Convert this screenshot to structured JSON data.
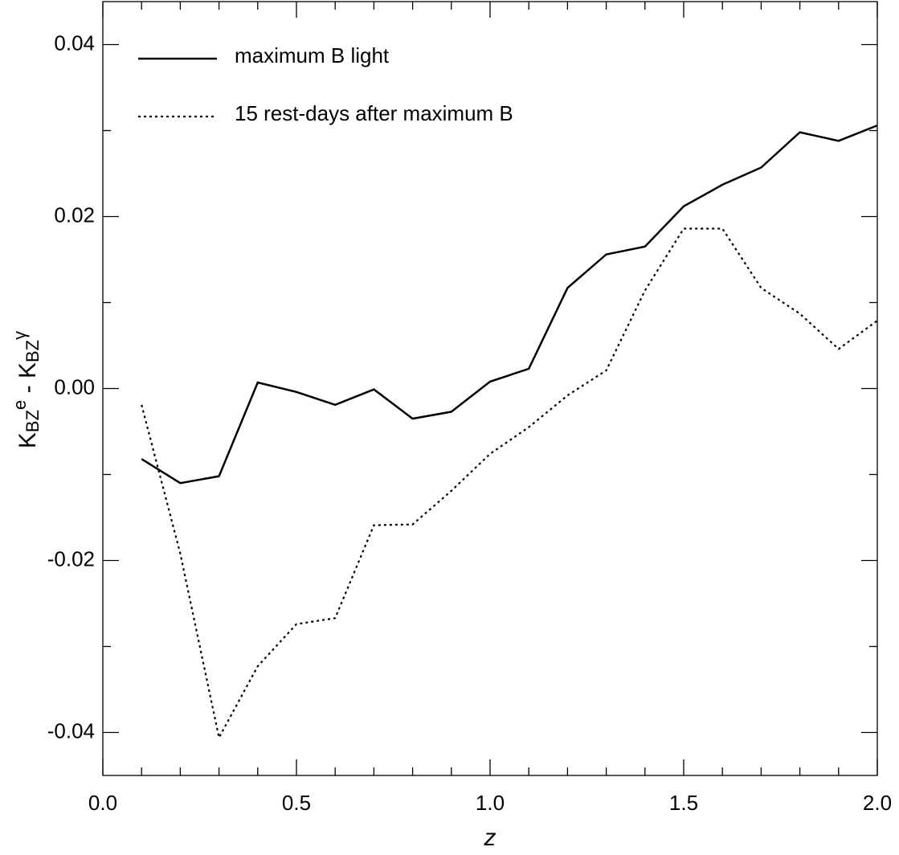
{
  "chart_data": {
    "type": "line",
    "x_label": "z",
    "y_label": [
      {
        "text": "K"
      },
      {
        "text": "BZ",
        "shift": "sub"
      },
      {
        "text": "e",
        "shift": "super"
      },
      {
        "text": " - K"
      },
      {
        "text": "BZ",
        "shift": "sub"
      },
      {
        "text": "γ",
        "shift": "super"
      }
    ],
    "x": [
      0.1,
      0.2,
      0.3,
      0.4,
      0.5,
      0.6,
      0.7,
      0.8,
      0.9,
      1.0,
      1.1,
      1.2,
      1.3,
      1.4,
      1.5,
      1.6,
      1.7,
      1.8,
      1.9,
      2.0
    ],
    "series": [
      {
        "name": "maximum B light",
        "color": "#000000",
        "dash": "solid",
        "values": [
          -0.0082,
          -0.011,
          -0.0102,
          0.0007,
          -0.0004,
          -0.0019,
          -0.0001,
          -0.0035,
          -0.0027,
          0.0008,
          0.0023,
          0.0117,
          0.0156,
          0.0165,
          0.0212,
          0.0237,
          0.0257,
          0.0298,
          0.0288,
          0.0306
        ]
      },
      {
        "name": "15 rest-days after maximum B",
        "color": "#000000",
        "dash": "dotted",
        "values": [
          -0.0019,
          -0.0192,
          -0.0406,
          -0.0323,
          -0.0274,
          -0.0267,
          -0.0159,
          -0.0158,
          -0.0119,
          -0.0076,
          -0.0045,
          -0.0008,
          0.0021,
          0.0114,
          0.0186,
          0.0186,
          0.0117,
          0.0087,
          0.0046,
          0.0079
        ]
      }
    ],
    "xlim": [
      0,
      2
    ],
    "xticks": [
      {
        "value": 0,
        "label": "0.0"
      },
      {
        "value": 0.5,
        "label": "0.5"
      },
      {
        "value": 1,
        "label": "1.0"
      },
      {
        "value": 1.5,
        "label": "1.5"
      },
      {
        "value": 2,
        "label": "2.0"
      }
    ],
    "xminorticks": [
      0.1,
      0.2,
      0.3,
      0.4,
      0.6,
      0.7,
      0.8,
      0.9,
      1.1,
      1.2,
      1.3,
      1.4,
      1.6,
      1.7,
      1.8,
      1.9
    ],
    "ylim": [
      -0.045,
      0.045
    ],
    "yticks": [
      -0.04,
      -0.02,
      {
        "value": 0,
        "label": "0.00"
      },
      0.02,
      0.04
    ],
    "yminorticks": [
      -0.03,
      -0.01,
      0.01,
      0.03
    ],
    "legend": "upper-left"
  }
}
